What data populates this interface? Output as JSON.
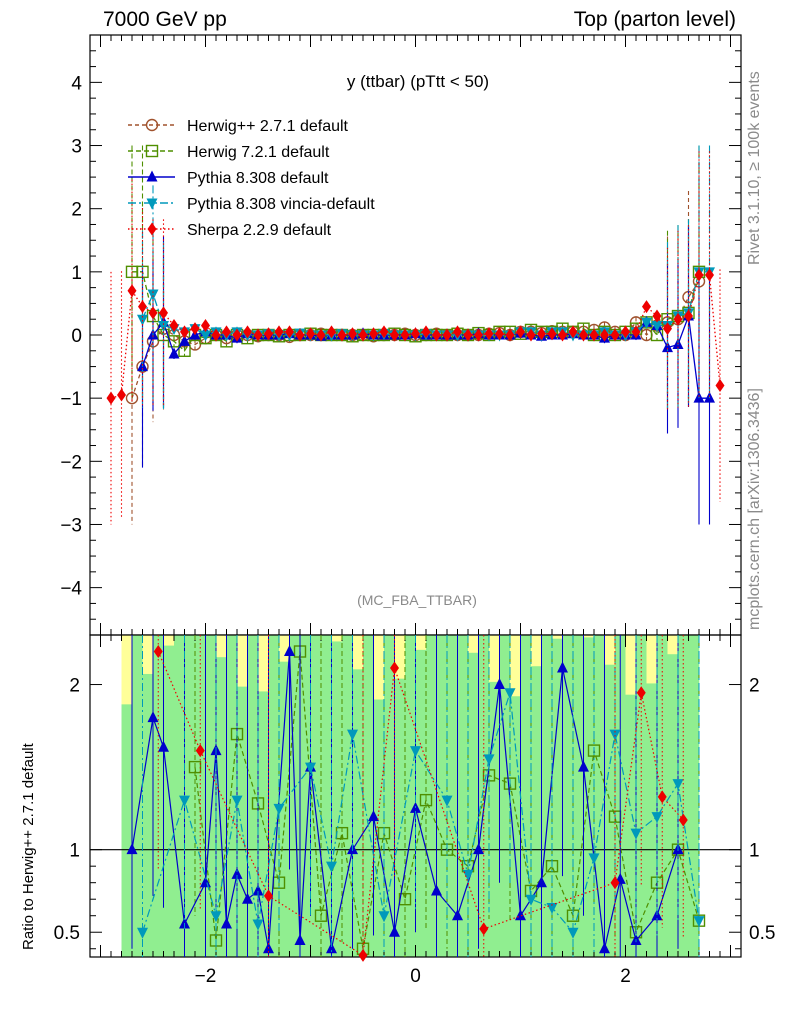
{
  "header": {
    "left": "7000 GeV pp",
    "right": "Top (parton level)"
  },
  "side_labels": {
    "rivet": "Rivet 3.1.10, ≥ 100k events",
    "mcplots": "mcplots.cern.ch [arXiv:1306.3436]"
  },
  "ratio_ylabel": "Ratio to Herwig++ 2.7.1 default",
  "chart_data": [
    {
      "type": "line",
      "title": "y (ttbar) (pTtt < 50)",
      "analysis_tag": "(MC_FBA_TTBAR)",
      "xlim": [
        -3.1,
        3.1
      ],
      "ylim": [
        -4.75,
        4.75
      ],
      "yticks": [
        -4,
        -3,
        -2,
        -1,
        0,
        1,
        2,
        3,
        4
      ],
      "xticks": [
        -2,
        0,
        2
      ],
      "legend_position": "top-left",
      "x": [
        -2.9,
        -2.8,
        -2.7,
        -2.6,
        -2.5,
        -2.4,
        -2.3,
        -2.2,
        -2.1,
        -2.0,
        -1.9,
        -1.8,
        -1.7,
        -1.6,
        -1.5,
        -1.4,
        -1.3,
        -1.2,
        -1.1,
        -1.0,
        -0.9,
        -0.8,
        -0.7,
        -0.6,
        -0.5,
        -0.4,
        -0.3,
        -0.2,
        -0.1,
        0.0,
        0.1,
        0.2,
        0.3,
        0.4,
        0.5,
        0.6,
        0.7,
        0.8,
        0.9,
        1.0,
        1.1,
        1.2,
        1.3,
        1.4,
        1.5,
        1.6,
        1.7,
        1.8,
        1.9,
        2.0,
        2.1,
        2.2,
        2.3,
        2.4,
        2.5,
        2.6,
        2.7,
        2.8,
        2.9
      ],
      "series": [
        {
          "name": "Herwig++ 2.7.1 default",
          "color": "#a0522d",
          "marker": "open-circle",
          "dash": "4,3",
          "values": [
            null,
            null,
            -1.0,
            -0.5,
            -0.1,
            0.1,
            0.0,
            -0.1,
            -0.15,
            -0.05,
            0.0,
            -0.05,
            0.0,
            0.0,
            -0.02,
            0.0,
            0.0,
            -0.03,
            0.0,
            0.0,
            0.02,
            0.0,
            0.0,
            0.0,
            0.0,
            -0.02,
            0.0,
            0.0,
            0.02,
            0.0,
            0.0,
            0.02,
            0.0,
            0.0,
            0.0,
            0.0,
            0.02,
            0.03,
            0.0,
            0.05,
            0.05,
            0.03,
            0.06,
            0.05,
            0.05,
            0.05,
            0.08,
            0.12,
            0.05,
            0.0,
            0.2,
            0.0,
            0.15,
            0.2,
            0.25,
            0.6,
            0.85,
            null,
            null
          ]
        },
        {
          "name": "Herwig 7.2.1 default",
          "color": "#4f8f00",
          "marker": "open-square",
          "dash": "5,3",
          "values": [
            null,
            null,
            1.0,
            1.0,
            0.3,
            0.0,
            -0.1,
            -0.25,
            0.0,
            -0.05,
            0.0,
            -0.1,
            0.0,
            -0.05,
            0.0,
            0.0,
            -0.02,
            0.0,
            0.0,
            0.02,
            0.0,
            0.0,
            0.0,
            -0.02,
            0.0,
            0.0,
            0.0,
            0.02,
            0.0,
            -0.02,
            0.0,
            0.0,
            0.0,
            0.02,
            0.0,
            0.03,
            0.0,
            0.05,
            0.05,
            0.02,
            0.08,
            0.05,
            0.05,
            0.1,
            0.05,
            0.1,
            0.0,
            0.05,
            0.0,
            0.05,
            0.1,
            0.2,
            0.0,
            0.25,
            0.3,
            0.35,
            1.0,
            null,
            null
          ]
        },
        {
          "name": "Pythia 8.308 default",
          "color": "#0000cc",
          "marker": "filled-triangle-up",
          "dash": "",
          "values": [
            null,
            null,
            null,
            -0.5,
            0.0,
            0.2,
            -0.3,
            -0.1,
            0.0,
            0.05,
            0.0,
            0.0,
            -0.05,
            0.02,
            0.0,
            0.0,
            0.0,
            0.02,
            0.0,
            0.0,
            -0.02,
            0.0,
            0.0,
            0.0,
            0.02,
            0.0,
            0.0,
            0.0,
            0.0,
            0.02,
            0.0,
            0.0,
            0.0,
            0.0,
            0.0,
            0.02,
            0.0,
            0.0,
            0.0,
            0.03,
            0.0,
            -0.02,
            0.0,
            0.0,
            0.02,
            0.0,
            0.0,
            -0.05,
            0.0,
            0.0,
            0.0,
            0.2,
            0.15,
            -0.2,
            -0.15,
            0.3,
            -1.0,
            -1.0,
            null
          ]
        },
        {
          "name": "Pythia 8.308 vincia-default",
          "color": "#0099bb",
          "marker": "filled-triangle-down",
          "dash": "8,3,2,3",
          "values": [
            null,
            null,
            null,
            0.25,
            0.65,
            0.15,
            0.1,
            0.05,
            0.1,
            0.0,
            0.05,
            0.0,
            0.05,
            0.0,
            0.0,
            0.02,
            0.0,
            0.0,
            0.03,
            0.0,
            0.0,
            0.0,
            0.02,
            0.0,
            0.0,
            0.0,
            0.02,
            0.0,
            0.0,
            0.0,
            0.02,
            0.0,
            0.0,
            0.0,
            0.0,
            0.0,
            0.0,
            0.0,
            0.0,
            0.05,
            0.05,
            0.0,
            0.05,
            0.05,
            0.0,
            0.0,
            0.0,
            0.05,
            0.0,
            0.0,
            0.05,
            0.2,
            0.15,
            0.15,
            0.3,
            0.35,
            1.0,
            1.0,
            null
          ]
        },
        {
          "name": "Sherpa 2.2.9 default",
          "color": "#ee0000",
          "marker": "filled-diamond",
          "dash": "1.5,2.5",
          "values": [
            -1.0,
            -0.95,
            0.7,
            0.45,
            0.35,
            0.35,
            0.15,
            0.05,
            0.1,
            0.15,
            0.0,
            0.05,
            0.0,
            0.05,
            0.0,
            0.02,
            0.05,
            0.05,
            0.0,
            0.02,
            0.0,
            0.05,
            0.0,
            0.02,
            0.0,
            0.02,
            0.05,
            0.0,
            0.0,
            0.02,
            0.05,
            0.0,
            0.0,
            0.05,
            0.0,
            0.0,
            0.02,
            0.02,
            0.0,
            0.05,
            0.0,
            0.02,
            0.02,
            0.0,
            0.05,
            0.0,
            0.0,
            0.0,
            0.0,
            0.05,
            0.05,
            0.45,
            0.3,
            0.1,
            0.25,
            0.3,
            0.95,
            0.95,
            -0.8
          ]
        }
      ]
    },
    {
      "type": "line",
      "title": "",
      "ylabel": "Ratio to Herwig++ 2.7.1 default",
      "ylim": [
        0.35,
        2.3
      ],
      "yticks": [
        0.5,
        1,
        2
      ],
      "xticks": [
        -2,
        0,
        2
      ],
      "reference_line": 1,
      "band_colors": {
        "inner": "#90ee90",
        "outer": "#ffff99"
      },
      "series": [
        {
          "name": "Herwig 7.2.1 default",
          "x": [
            -2.1,
            -1.9,
            -1.7,
            -1.5,
            -1.3,
            -1.1,
            -0.9,
            -0.7,
            -0.5,
            -0.3,
            -0.1,
            0.1,
            0.3,
            0.5,
            0.7,
            0.9,
            1.1,
            1.3,
            1.5,
            1.7,
            1.9,
            2.1,
            2.3,
            2.5,
            2.7
          ],
          "values": [
            1.5,
            0.45,
            1.7,
            1.28,
            0.8,
            2.2,
            0.6,
            1.1,
            0.4,
            1.1,
            0.7,
            1.3,
            1.0,
            0.9,
            1.45,
            1.4,
            0.75,
            0.9,
            0.6,
            1.6,
            1.2,
            0.5,
            0.8,
            1.0,
            0.57
          ]
        },
        {
          "name": "Pythia 8.308 default",
          "x": [
            -2.7,
            -2.5,
            -2.4,
            -2.2,
            -2.0,
            -1.9,
            -1.8,
            -1.7,
            -1.6,
            -1.5,
            -1.4,
            -1.2,
            -1.1,
            -1.0,
            -0.8,
            -0.6,
            -0.4,
            -0.2,
            0.0,
            0.2,
            0.4,
            0.6,
            0.8,
            1.0,
            1.2,
            1.4,
            1.6,
            1.8,
            1.95,
            2.1,
            2.3,
            2.5
          ],
          "values": [
            1.0,
            1.8,
            1.62,
            0.55,
            0.8,
            1.6,
            0.55,
            0.85,
            0.7,
            0.75,
            0.4,
            2.2,
            0.45,
            1.5,
            0.4,
            1.0,
            1.2,
            0.5,
            1.25,
            0.75,
            0.6,
            1.0,
            2.0,
            0.6,
            0.8,
            2.1,
            1.5,
            0.4,
            0.82,
            0.45,
            0.6,
            1.0
          ]
        },
        {
          "name": "Pythia 8.308 vincia-default",
          "x": [
            -2.6,
            -2.2,
            -1.9,
            -1.7,
            -1.5,
            -1.3,
            -1.0,
            -0.8,
            -0.6,
            -0.3,
            0.0,
            0.3,
            0.5,
            0.7,
            0.9,
            1.1,
            1.3,
            1.5,
            1.7,
            1.9,
            2.1,
            2.3,
            2.5,
            2.7
          ],
          "values": [
            0.5,
            1.3,
            0.6,
            1.3,
            0.55,
            1.25,
            1.5,
            0.9,
            1.7,
            0.6,
            1.6,
            1.3,
            0.85,
            1.55,
            1.95,
            0.7,
            0.65,
            0.5,
            0.95,
            1.7,
            1.1,
            1.2,
            1.4,
            0.57
          ]
        },
        {
          "name": "Sherpa 2.2.9 default",
          "x": [
            -2.45,
            -2.05,
            -1.4,
            -0.5,
            -0.2,
            0.65,
            1.9,
            2.15,
            2.35,
            2.55
          ],
          "values": [
            2.2,
            1.6,
            0.72,
            0.36,
            2.1,
            0.52,
            0.8,
            1.95,
            1.32,
            1.18
          ]
        }
      ]
    }
  ]
}
